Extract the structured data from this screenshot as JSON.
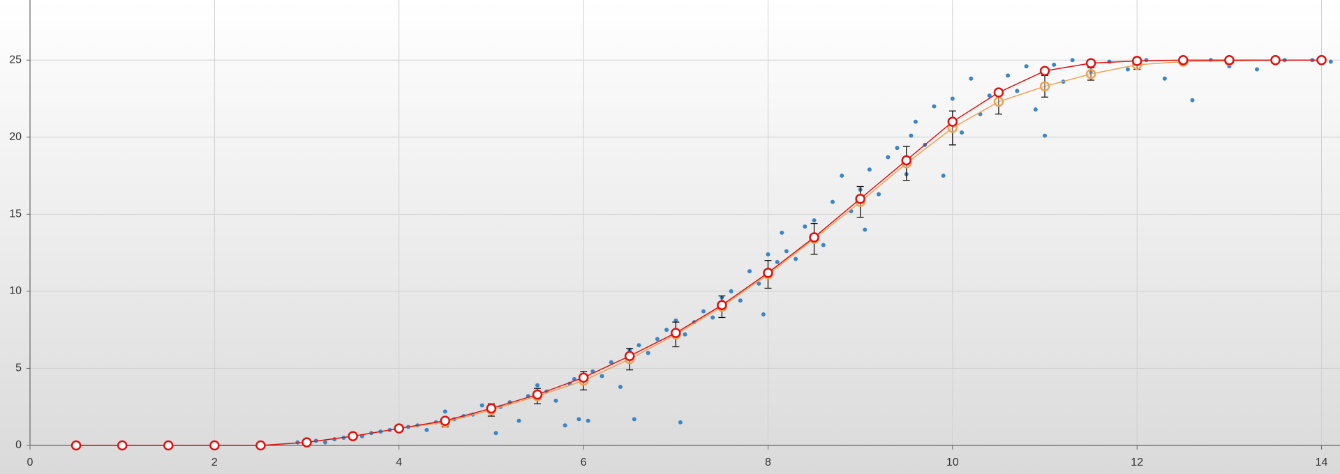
{
  "chart_data": {
    "type": "scatter",
    "xlim": [
      0,
      14.2
    ],
    "ylim": [
      0,
      28.9
    ],
    "xticks": [
      0,
      2,
      4,
      6,
      8,
      10,
      12,
      14
    ],
    "yticks": [
      0,
      5,
      10,
      15,
      20,
      25
    ],
    "grid": true,
    "scatter": {
      "color": "#3a85c8",
      "x": [
        2.9,
        3.1,
        3.2,
        3.3,
        3.4,
        3.6,
        3.7,
        3.8,
        3.9,
        4.1,
        4.2,
        4.3,
        4.4,
        4.5,
        4.6,
        4.7,
        4.8,
        4.9,
        5.05,
        5.1,
        5.2,
        5.3,
        5.4,
        5.5,
        5.6,
        5.7,
        5.8,
        5.85,
        5.9,
        5.95,
        6.05,
        6.1,
        6.2,
        6.3,
        6.4,
        6.5,
        6.55,
        6.6,
        6.7,
        6.8,
        6.9,
        7.0,
        7.05,
        7.1,
        7.2,
        7.3,
        7.4,
        7.5,
        7.6,
        7.7,
        7.8,
        7.9,
        7.95,
        8.0,
        8.1,
        8.15,
        8.2,
        8.3,
        8.4,
        8.5,
        8.6,
        8.7,
        8.8,
        8.9,
        9.0,
        9.05,
        9.1,
        9.2,
        9.3,
        9.4,
        9.5,
        9.55,
        9.6,
        9.7,
        9.8,
        9.9,
        10.0,
        10.1,
        10.2,
        10.3,
        10.4,
        10.6,
        10.7,
        10.8,
        10.9,
        11.0,
        11.1,
        11.2,
        11.3,
        11.5,
        11.7,
        11.9,
        12.1,
        12.3,
        12.5,
        12.6,
        12.8,
        13.0,
        13.3,
        13.6,
        13.9,
        14.1
      ],
      "values": [
        0.2,
        0.3,
        0.2,
        0.4,
        0.5,
        0.6,
        0.8,
        0.9,
        1.0,
        1.2,
        1.3,
        1.0,
        1.5,
        2.2,
        1.7,
        1.9,
        2.0,
        2.6,
        0.8,
        2.5,
        2.8,
        1.6,
        3.2,
        3.9,
        3.5,
        2.9,
        1.3,
        4.0,
        4.3,
        1.7,
        1.6,
        4.8,
        4.5,
        5.4,
        3.8,
        6.2,
        1.7,
        6.5,
        6.0,
        6.9,
        7.5,
        8.1,
        1.5,
        7.2,
        8.0,
        8.7,
        8.3,
        9.6,
        10.0,
        9.4,
        11.3,
        10.5,
        8.5,
        12.4,
        11.9,
        13.8,
        12.6,
        12.1,
        14.2,
        14.6,
        13.0,
        15.8,
        17.5,
        15.2,
        16.6,
        14.0,
        17.9,
        16.3,
        18.7,
        19.3,
        17.6,
        20.1,
        21.0,
        19.5,
        22.0,
        17.5,
        22.5,
        20.3,
        23.8,
        21.5,
        22.7,
        24.0,
        23.0,
        24.6,
        21.8,
        20.1,
        24.7,
        23.6,
        25.0,
        24.2,
        24.9,
        24.4,
        25.0,
        23.8,
        24.9,
        22.4,
        25.0,
        24.6,
        24.4,
        25.0,
        25.0,
        24.9
      ]
    },
    "series": [
      {
        "color": "#f0a050",
        "x": [
          3,
          3.5,
          4,
          4.5,
          5,
          5.5,
          6,
          6.5,
          7,
          7.5,
          8,
          8.5,
          9,
          9.5,
          10,
          10.5,
          11,
          11.5,
          12,
          12.5,
          13,
          13.5,
          14
        ],
        "values": [
          0.2,
          0.6,
          1.1,
          1.5,
          2.3,
          3.2,
          4.2,
          5.6,
          7.2,
          9.0,
          11.1,
          13.4,
          15.8,
          18.3,
          20.6,
          22.3,
          23.3,
          24.1,
          24.7,
          24.9,
          24.95,
          25,
          25
        ],
        "errors": [
          0.1,
          0.15,
          0.2,
          0.3,
          0.4,
          0.5,
          0.6,
          0.7,
          0.8,
          0.7,
          0.9,
          1.0,
          1.0,
          1.1,
          1.1,
          0.8,
          0.7,
          0.4,
          0.3,
          0.2,
          0.1,
          0.1,
          0.05
        ]
      },
      {
        "color": "#e01010",
        "x": [
          0.5,
          1,
          1.5,
          2,
          2.5,
          3,
          3.5,
          4,
          4.5,
          5,
          5.5,
          6,
          6.5,
          7,
          7.5,
          8,
          8.5,
          9,
          9.5,
          10,
          10.5,
          11,
          11.5,
          12,
          12.5,
          13,
          13.5,
          14
        ],
        "values": [
          0,
          0,
          0,
          0,
          0,
          0.2,
          0.6,
          1.1,
          1.6,
          2.4,
          3.3,
          4.4,
          5.8,
          7.3,
          9.1,
          11.2,
          13.5,
          16,
          18.5,
          21,
          22.9,
          24.3,
          24.8,
          24.95,
          25,
          25,
          25,
          25
        ]
      }
    ]
  }
}
